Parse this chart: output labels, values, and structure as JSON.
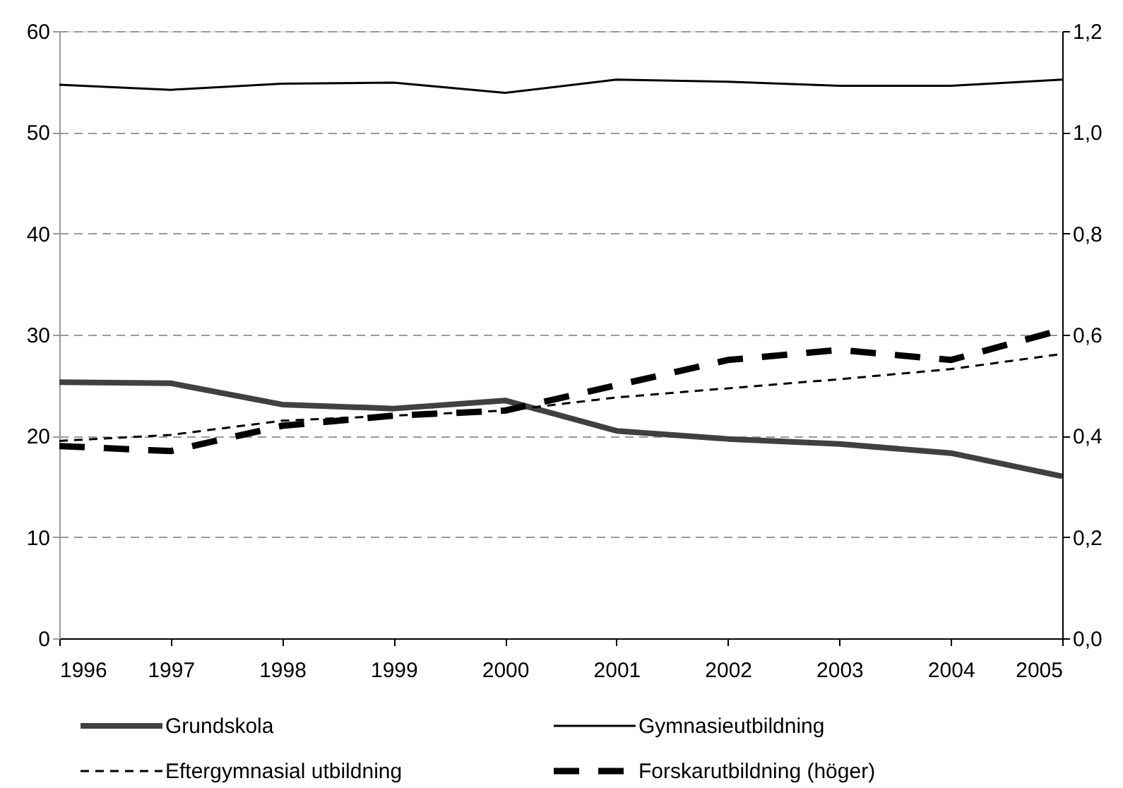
{
  "chart_data": {
    "type": "line",
    "x": [
      1996,
      1997,
      1998,
      1999,
      2000,
      2001,
      2002,
      2003,
      2004,
      2005
    ],
    "series": [
      {
        "name": "Grundskola",
        "color": "#404040",
        "line_style": "solid",
        "values": [
          25.3,
          25.2,
          23.1,
          22.7,
          23.5,
          20.5,
          19.7,
          19.2,
          18.3,
          16.0
        ]
      },
      {
        "name": "Gymnasieutbildning",
        "color": "#000000",
        "line_style": "solid",
        "values": [
          54.7,
          54.2,
          54.8,
          54.9,
          53.9,
          55.2,
          55.0,
          54.6,
          54.6,
          55.2
        ]
      },
      {
        "name": "Eftergymnasial utbildning",
        "color": "#000000",
        "line_style": "dashed",
        "values": [
          19.5,
          20.1,
          21.5,
          22.0,
          22.5,
          23.8,
          24.7,
          25.6,
          26.6,
          28.1
        ]
      },
      {
        "name": "Forskarutbildning (höger)",
        "color": "#000000",
        "line_style": "dashed",
        "axis": "y2",
        "values": [
          0.38,
          0.37,
          0.42,
          0.44,
          0.45,
          0.5,
          0.55,
          0.57,
          0.55,
          0.61
        ]
      }
    ],
    "xlim": [
      1996,
      2005
    ],
    "xticks": [
      1996,
      1997,
      1998,
      1999,
      2000,
      2001,
      2002,
      2003,
      2004,
      2005
    ],
    "ylim": [
      0,
      60
    ],
    "yticks": [
      0,
      10,
      20,
      30,
      40,
      50,
      60
    ],
    "y2lim": [
      0,
      1.2
    ],
    "y2ticks": [
      {
        "value": 0,
        "label": "0,0"
      },
      {
        "value": 0.2,
        "label": "0,2"
      },
      {
        "value": 0.4,
        "label": "0,4"
      },
      {
        "value": 0.6,
        "label": "0,6"
      },
      {
        "value": 0.8,
        "label": "0,8"
      },
      {
        "value": 1.0,
        "label": "1,0"
      },
      {
        "value": 1.2,
        "label": "1,2"
      }
    ],
    "grid": "y",
    "legend": "bottom",
    "marker": "none"
  }
}
